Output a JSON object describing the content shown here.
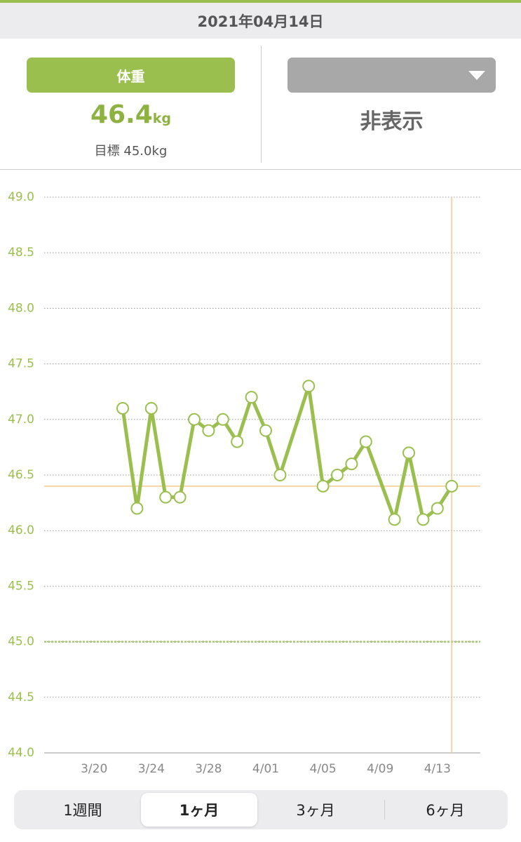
{
  "header": {
    "date": "2021年04月14日"
  },
  "left_panel": {
    "button": "体重",
    "value": "46.4",
    "unit": "kg",
    "target_label": "目標",
    "target": "45.0kg"
  },
  "right_panel": {
    "status": "非表示"
  },
  "chart_data": {
    "type": "line",
    "x": [
      "3/22",
      "3/23",
      "3/24",
      "3/25",
      "3/26",
      "3/27",
      "3/28",
      "3/29",
      "3/30",
      "3/31",
      "4/01",
      "4/02",
      "4/04",
      "4/05",
      "4/06",
      "4/07",
      "4/08",
      "4/10",
      "4/11",
      "4/12",
      "4/13",
      "4/14"
    ],
    "series": [
      {
        "name": "体重",
        "color": "#9bbf4e",
        "values": [
          47.1,
          46.2,
          47.1,
          46.3,
          46.3,
          47.0,
          46.9,
          47.0,
          46.8,
          47.2,
          46.9,
          46.5,
          47.3,
          46.4,
          46.5,
          46.6,
          46.8,
          46.1,
          46.7,
          46.1,
          46.2,
          46.4
        ]
      }
    ],
    "goal": 45.0,
    "xlim": [
      "3/17",
      "4/16"
    ],
    "xticks": [
      "3/20",
      "3/24",
      "3/28",
      "4/01",
      "4/05",
      "4/09",
      "4/13"
    ],
    "ylim": [
      44,
      49
    ],
    "yticks": [
      {
        "value": 44,
        "label": "44.0"
      },
      {
        "value": 44.5,
        "label": "44.5"
      },
      {
        "value": 45,
        "label": "45.0"
      },
      {
        "value": 45.5,
        "label": "45.5"
      },
      {
        "value": 46,
        "label": "46.0"
      },
      {
        "value": 46.5,
        "label": "46.5"
      },
      {
        "value": 47,
        "label": "47.0"
      },
      {
        "value": 47.5,
        "label": "47.5"
      },
      {
        "value": 48,
        "label": "48.0"
      },
      {
        "value": 48.5,
        "label": "48.5"
      },
      {
        "value": 49,
        "label": "49.0"
      }
    ],
    "grid": true,
    "highlight_color": "#f5c98e"
  },
  "tabs": [
    "1週間",
    "1ヶ月",
    "3ヶ月",
    "6ヶ月"
  ]
}
